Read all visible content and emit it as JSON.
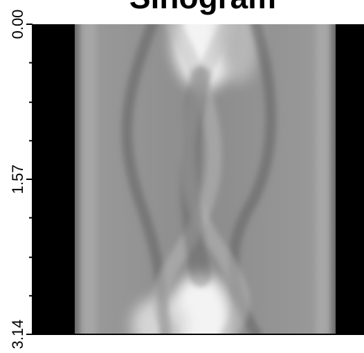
{
  "chart_data": {
    "type": "image",
    "title": "Sinogram",
    "ylim": [
      0,
      3.14
    ],
    "y_inverted": true,
    "yticks": [
      {
        "value": 0,
        "label": "0.00"
      },
      1.57,
      3.14
    ],
    "yminorticks": [
      0.39,
      0.79,
      1.18,
      1.96,
      2.36,
      2.75
    ]
  }
}
